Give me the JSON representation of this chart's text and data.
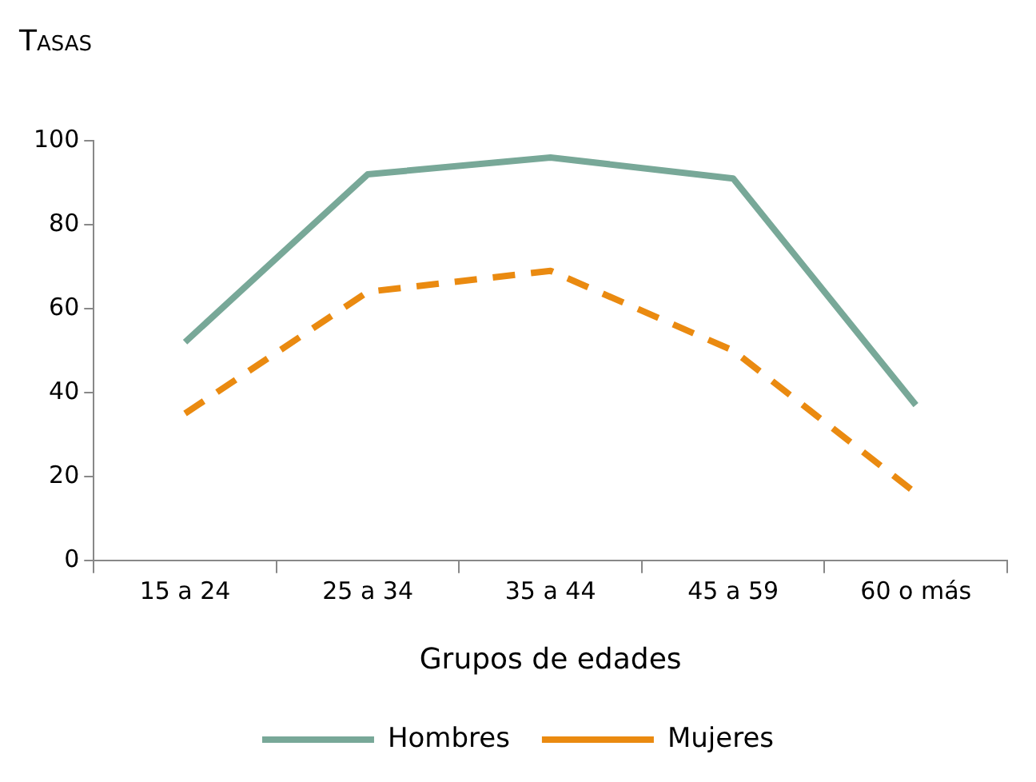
{
  "chart_data": {
    "type": "line",
    "ylabel": "Tasas",
    "xlabel": "Grupos de edades",
    "categories": [
      "15 a 24",
      "25 a 34",
      "35 a 44",
      "45 a 59",
      "60 o más"
    ],
    "series": [
      {
        "name": "Hombres",
        "color": "#78a898",
        "values": [
          52,
          92,
          96,
          91,
          37
        ],
        "line_style": "solid"
      },
      {
        "name": "Mujeres",
        "color": "#ea8a10",
        "values": [
          35,
          64,
          69,
          50,
          16
        ],
        "line_style": "dashed"
      }
    ],
    "ylim": [
      0,
      100
    ],
    "yticks": [
      0,
      20,
      40,
      60,
      80,
      100
    ],
    "grid": false,
    "legend": "bottom",
    "marker": "none"
  }
}
